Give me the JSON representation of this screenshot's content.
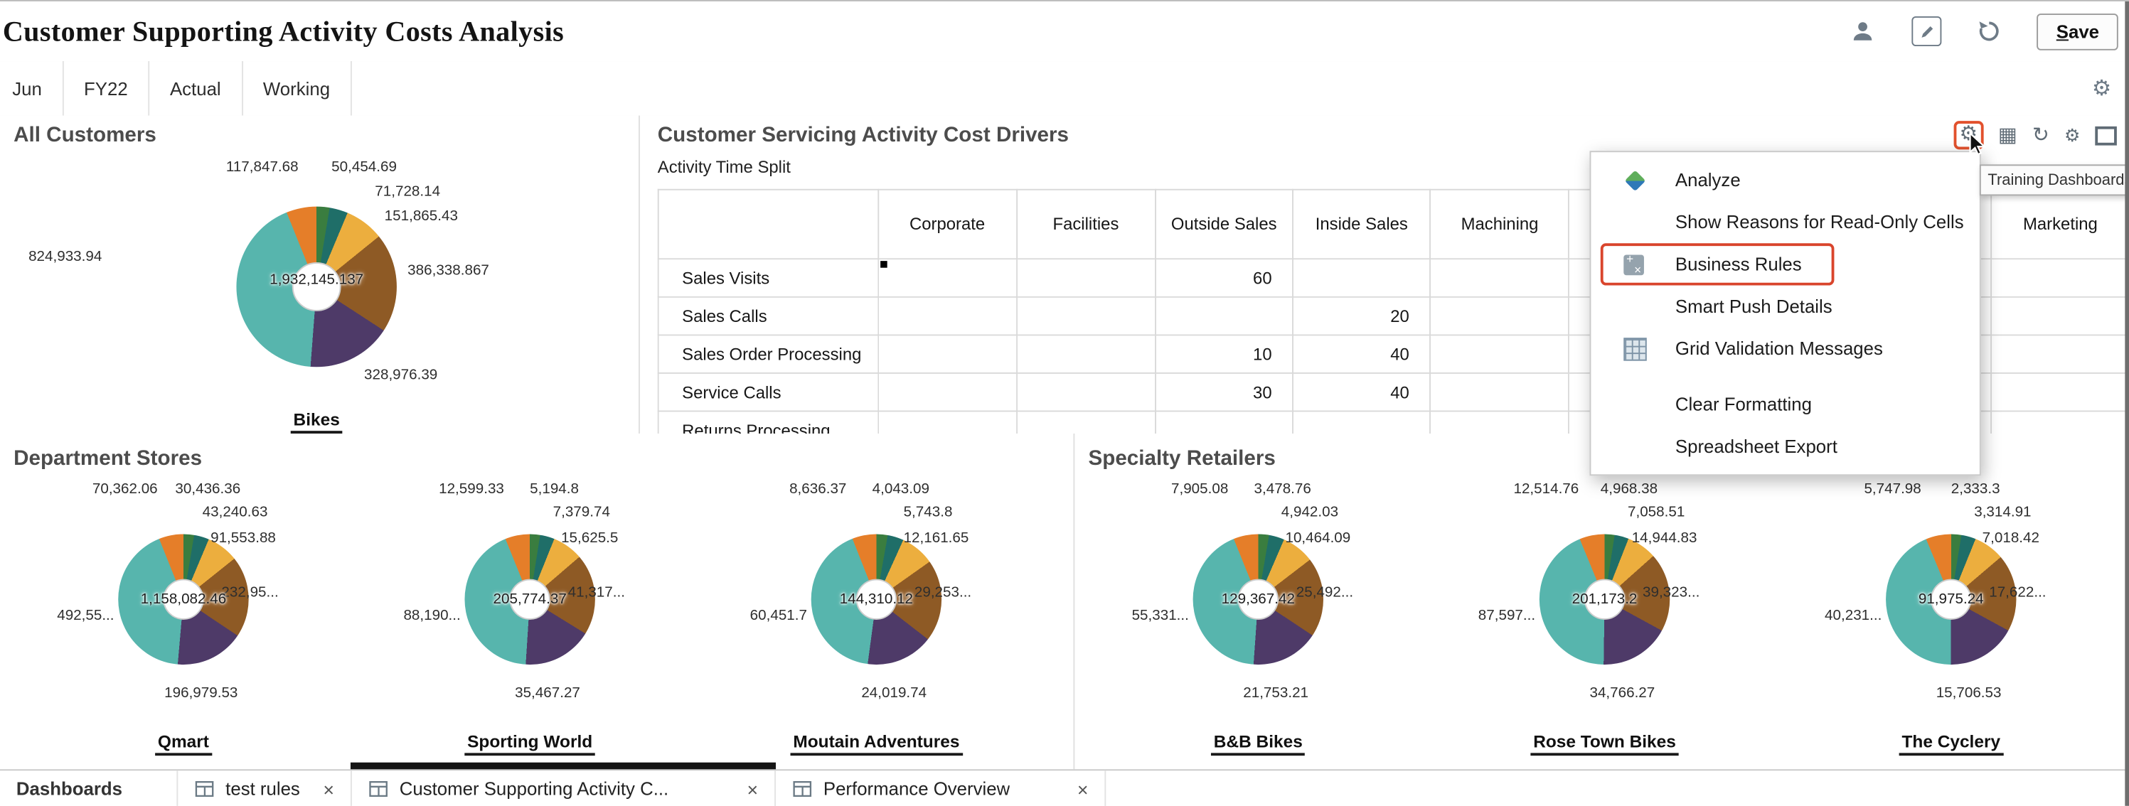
{
  "header": {
    "title": "Customer Supporting Activity Costs Analysis",
    "save_label": "Save"
  },
  "icons": {
    "gear": "⚙",
    "refresh": "↻",
    "grid": "▦",
    "close": "×"
  },
  "pov": {
    "items": [
      "Jun",
      "FY22",
      "Actual",
      "Working"
    ]
  },
  "panels": {
    "all_customers": {
      "title": "All Customers"
    },
    "cost_drivers": {
      "title": "Customer Servicing Activity Cost Drivers",
      "subtitle": "Activity Time Split",
      "table": {
        "columns": [
          "Corporate",
          "Facilities",
          "Outside Sales",
          "Inside Sales",
          "Machining"
        ],
        "far_column": "Marketing",
        "rows": [
          {
            "label": "Sales Visits",
            "values": {
              "Outside Sales": "60"
            }
          },
          {
            "label": "Sales Calls",
            "values": {
              "Inside Sales": "20"
            }
          },
          {
            "label": "Sales Order Processing",
            "values": {
              "Outside Sales": "10",
              "Inside Sales": "40"
            }
          },
          {
            "label": "Service Calls",
            "values": {
              "Outside Sales": "30",
              "Inside Sales": "40"
            }
          },
          {
            "label": "Returns Processing",
            "values": {}
          }
        ],
        "comment_marker": {
          "row": "Sales Visits",
          "column": "Corporate"
        }
      }
    },
    "department_stores": {
      "title": "Department Stores"
    },
    "specialty_retailers": {
      "title": "Specialty Retailers"
    }
  },
  "toolbar_tooltip": {
    "text": "Training Dashboards"
  },
  "menu": {
    "items": [
      {
        "label": "Analyze",
        "icon": "analyze-icon"
      },
      {
        "label": "Show Reasons for Read-Only Cells"
      },
      {
        "label": "Business Rules",
        "icon": "business-rules-icon",
        "highlighted": true
      },
      {
        "label": "Smart Push Details"
      },
      {
        "label": "Grid Validation Messages",
        "icon": "grid-validation-icon"
      },
      {
        "label": "Clear Formatting"
      },
      {
        "label": "Spreadsheet Export"
      }
    ]
  },
  "tabs": {
    "bar_label": "Dashboards",
    "items": [
      {
        "label": "test rules",
        "active": false
      },
      {
        "label": "Customer Supporting Activity C...",
        "active": true
      },
      {
        "label": "Performance Overview",
        "active": false
      }
    ]
  },
  "colors": {
    "teal": "#57B5AD",
    "darkteal": "#1F6E68",
    "green": "#3A7D3F",
    "gold": "#ECAE3E",
    "orange": "#E57E29",
    "brown": "#8E5A25",
    "purple": "#4E3A68"
  },
  "chart_data": [
    {
      "type": "pie",
      "id": "bikes",
      "name": "Bikes",
      "group": "All Customers",
      "center_total": "1,932,145.137",
      "slices": [
        {
          "key": "green",
          "label": "50,454.69",
          "value": 50454.69
        },
        {
          "key": "darkteal",
          "label": "71,728.14",
          "value": 71728.14
        },
        {
          "key": "gold",
          "label": "151,865.43",
          "value": 151865.43
        },
        {
          "key": "brown",
          "label": "386,338.867",
          "value": 386338.867
        },
        {
          "key": "purple",
          "label": "328,976.39",
          "value": 328976.39
        },
        {
          "key": "teal",
          "label": "824,933.94",
          "value": 824933.94
        },
        {
          "key": "orange",
          "label": "117,847.68",
          "value": 117847.68
        }
      ]
    },
    {
      "type": "pie",
      "id": "qmart",
      "name": "Qmart",
      "group": "Department Stores",
      "center_total": "1,158,082.46",
      "slices": [
        {
          "key": "green",
          "label": "30,436.36",
          "value": 30436.36
        },
        {
          "key": "darkteal",
          "label": "43,240.63",
          "value": 43240.63
        },
        {
          "key": "gold",
          "label": "91,553.88",
          "value": 91553.88
        },
        {
          "key": "brown",
          "label": "232,95...",
          "value": 232955
        },
        {
          "key": "purple",
          "label": "196,979.53",
          "value": 196979.53
        },
        {
          "key": "teal",
          "label": "492,55...",
          "value": 492555
        },
        {
          "key": "orange",
          "label": "70,362.06",
          "value": 70362.06
        }
      ]
    },
    {
      "type": "pie",
      "id": "sporting_world",
      "name": "Sporting World",
      "group": "Department Stores",
      "center_total": "205,774.37",
      "slices": [
        {
          "key": "green",
          "label": "5,194.8",
          "value": 5194.8
        },
        {
          "key": "darkteal",
          "label": "7,379.74",
          "value": 7379.74
        },
        {
          "key": "gold",
          "label": "15,625.5",
          "value": 15625.5
        },
        {
          "key": "brown",
          "label": "41,317...",
          "value": 41317
        },
        {
          "key": "purple",
          "label": "35,467.27",
          "value": 35467.27
        },
        {
          "key": "teal",
          "label": "88,190...",
          "value": 88190
        },
        {
          "key": "orange",
          "label": "12,599.33",
          "value": 12599.33
        }
      ]
    },
    {
      "type": "pie",
      "id": "moutain_adventures",
      "name": "Moutain Adventures",
      "group": "Department Stores",
      "center_total": "144,310.12",
      "slices": [
        {
          "key": "green",
          "label": "4,043.09",
          "value": 4043.09
        },
        {
          "key": "darkteal",
          "label": "5,743.8",
          "value": 5743.8
        },
        {
          "key": "gold",
          "label": "12,161.65",
          "value": 12161.65
        },
        {
          "key": "brown",
          "label": "29,253...",
          "value": 29253
        },
        {
          "key": "purple",
          "label": "24,019.74",
          "value": 24019.74
        },
        {
          "key": "teal",
          "label": "60,451.7",
          "value": 60451.7
        },
        {
          "key": "orange",
          "label": "8,636.37",
          "value": 8636.37
        }
      ]
    },
    {
      "type": "pie",
      "id": "bb_bikes",
      "name": "B&B Bikes",
      "group": "Specialty Retailers",
      "center_total": "129,367.42",
      "slices": [
        {
          "key": "green",
          "label": "3,478.76",
          "value": 3478.76
        },
        {
          "key": "darkteal",
          "label": "4,942.03",
          "value": 4942.03
        },
        {
          "key": "gold",
          "label": "10,464.09",
          "value": 10464.09
        },
        {
          "key": "brown",
          "label": "25,492...",
          "value": 25492
        },
        {
          "key": "purple",
          "label": "21,753.21",
          "value": 21753.21
        },
        {
          "key": "teal",
          "label": "55,331...",
          "value": 55331
        },
        {
          "key": "orange",
          "label": "7,905.08",
          "value": 7905.08
        }
      ]
    },
    {
      "type": "pie",
      "id": "rose_town_bikes",
      "name": "Rose Town Bikes",
      "group": "Specialty Retailers",
      "center_total": "201,173.2",
      "slices": [
        {
          "key": "green",
          "label": "4,968.38",
          "value": 4968.38
        },
        {
          "key": "darkteal",
          "label": "7,058.51",
          "value": 7058.51
        },
        {
          "key": "gold",
          "label": "14,944.83",
          "value": 14944.83
        },
        {
          "key": "brown",
          "label": "39,323...",
          "value": 39323
        },
        {
          "key": "purple",
          "label": "34,766.27",
          "value": 34766.27
        },
        {
          "key": "teal",
          "label": "87,597...",
          "value": 87597
        },
        {
          "key": "orange",
          "label": "12,514.76",
          "value": 12514.76
        }
      ]
    },
    {
      "type": "pie",
      "id": "the_cyclery",
      "name": "The Cyclery",
      "group": "Specialty Retailers",
      "center_total": "91,975.24",
      "slices": [
        {
          "key": "green",
          "label": "2,333.3",
          "value": 2333.3
        },
        {
          "key": "darkteal",
          "label": "3,314.91",
          "value": 3314.91
        },
        {
          "key": "gold",
          "label": "7,018.42",
          "value": 7018.42
        },
        {
          "key": "brown",
          "label": "17,622...",
          "value": 17622
        },
        {
          "key": "purple",
          "label": "15,706.53",
          "value": 15706.53
        },
        {
          "key": "teal",
          "label": "40,231...",
          "value": 40231
        },
        {
          "key": "orange",
          "label": "5,747.98",
          "value": 5747.98
        }
      ]
    }
  ]
}
